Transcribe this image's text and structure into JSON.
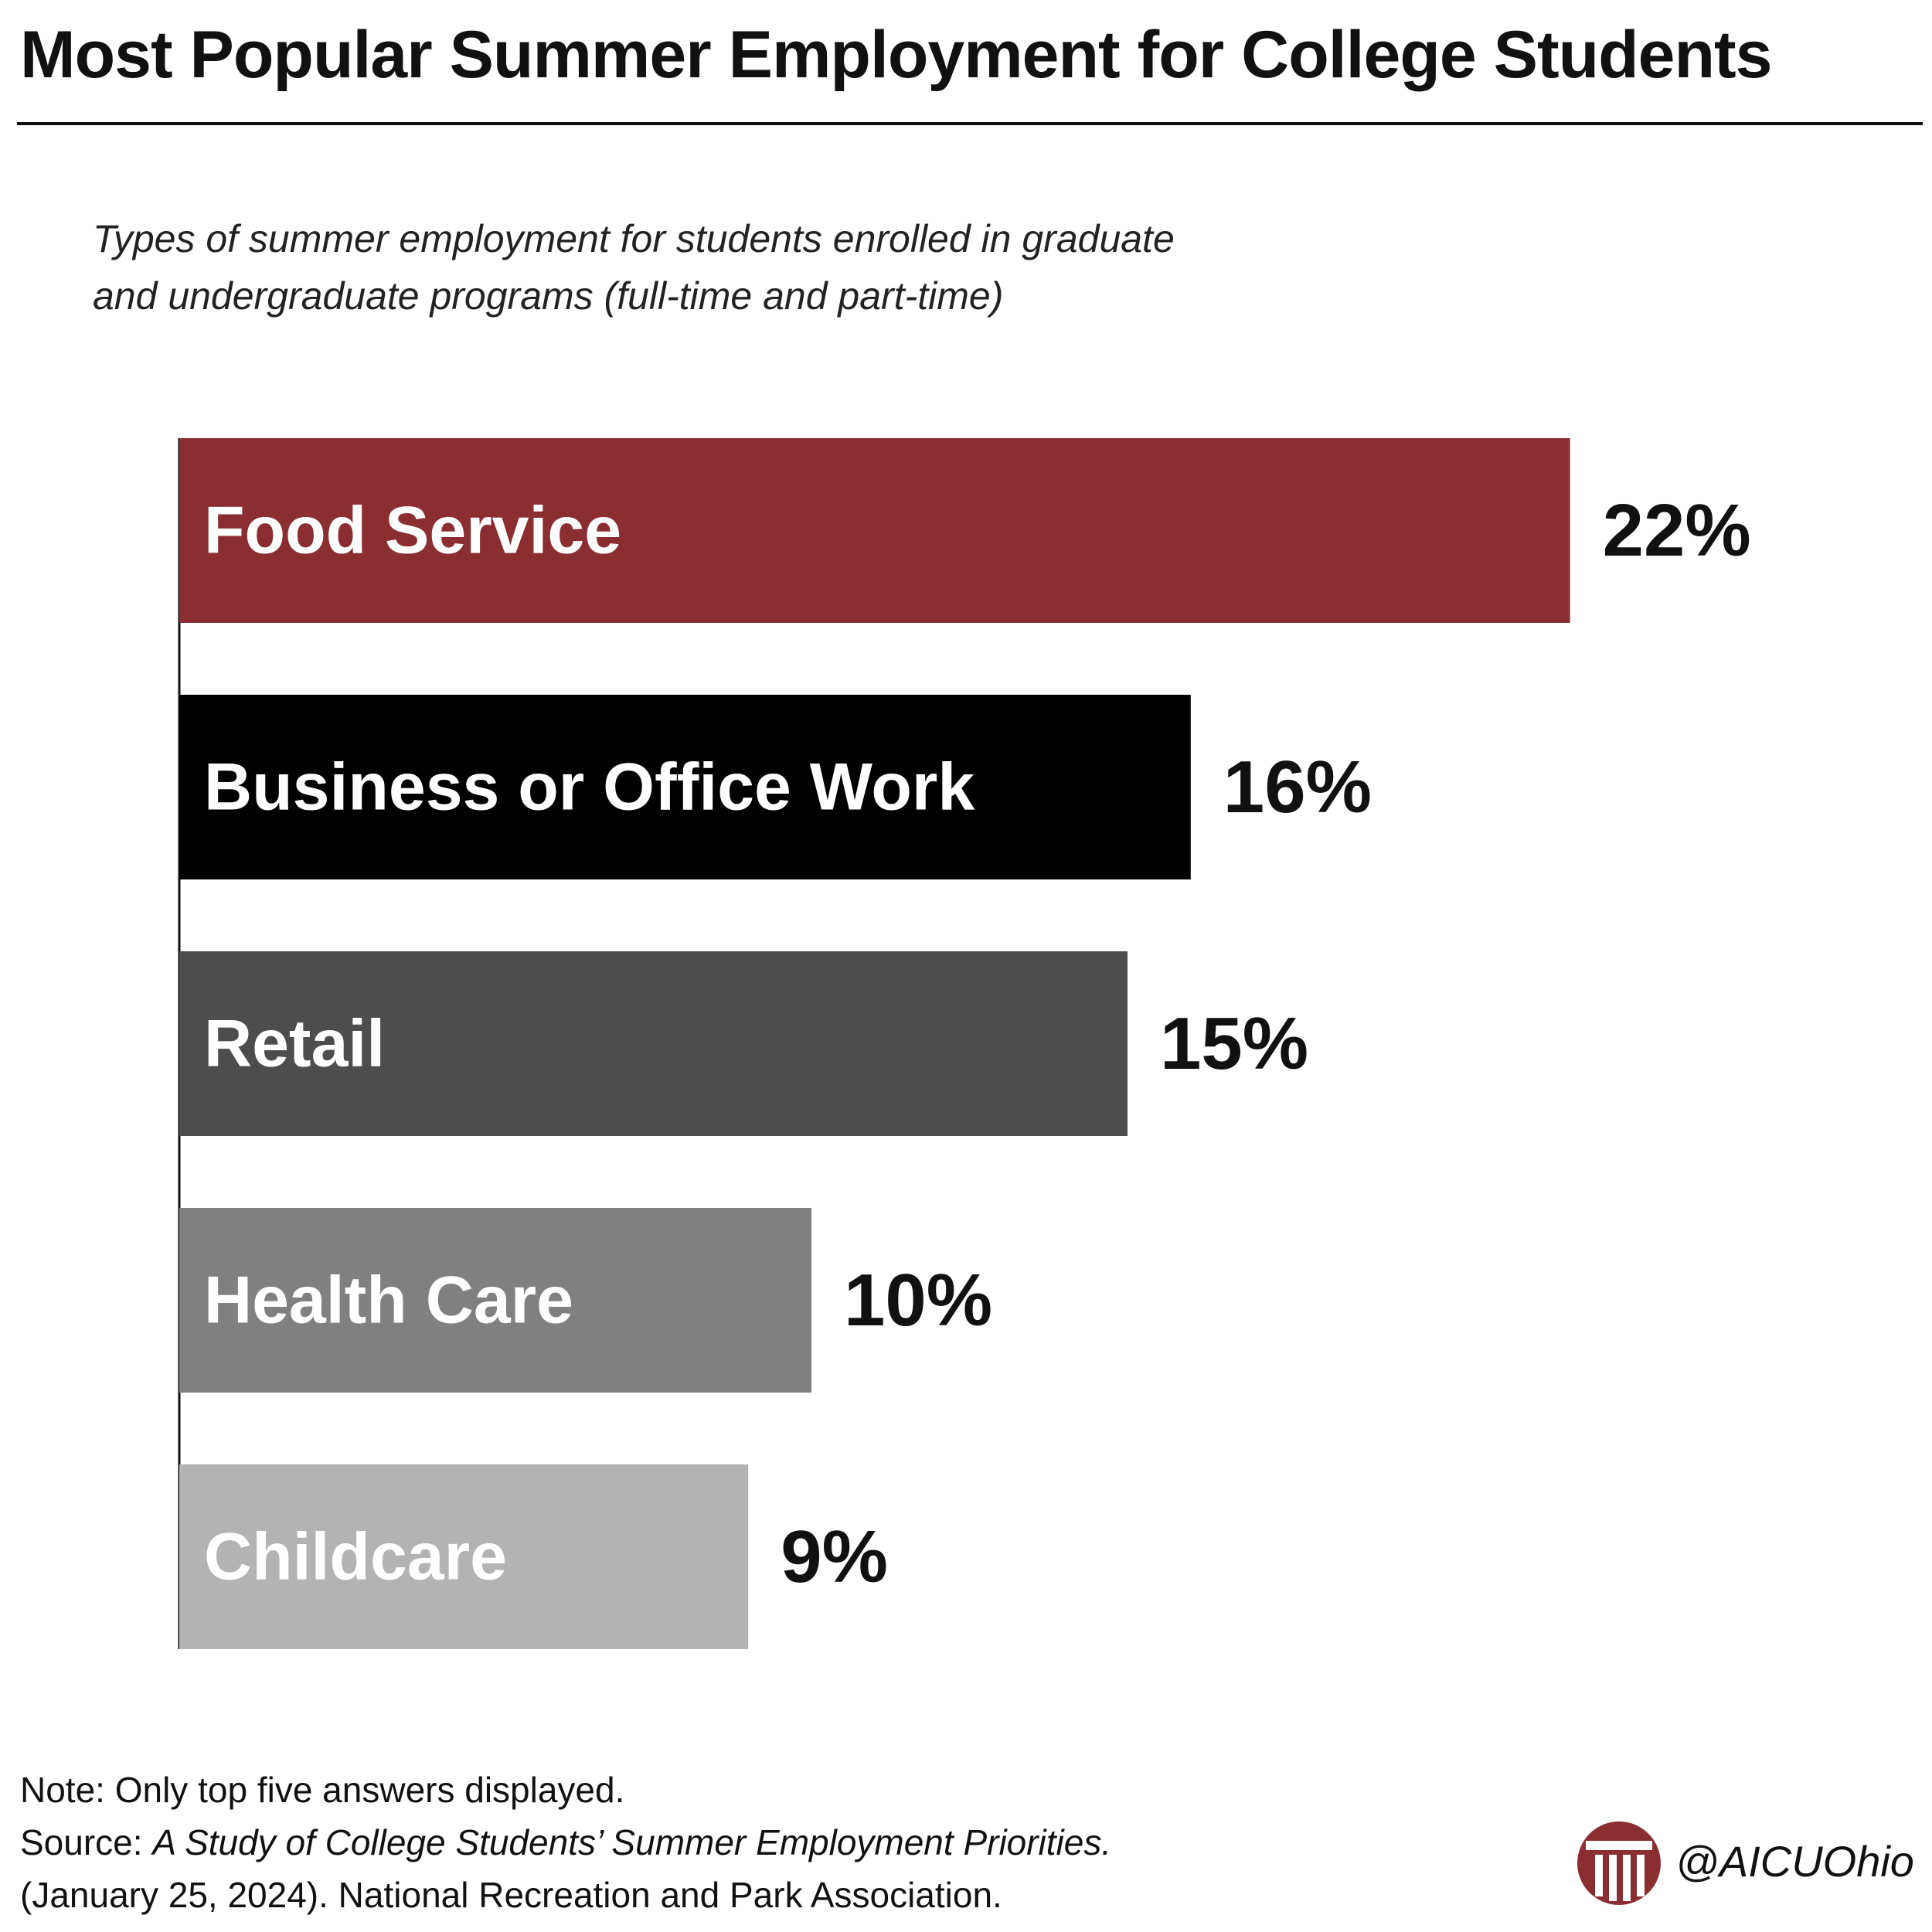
{
  "header": {
    "title": "Most Popular Summer Employment for College Students"
  },
  "chart_data": {
    "type": "bar",
    "orientation": "horizontal",
    "subtitle": "Types of summer employment for students enrolled in graduate and undergraduate programs (full-time and part-time)",
    "subtitle_lines": [
      "Types of summer employment for students enrolled in graduate",
      "and undergraduate programs (full-time and part-time)"
    ],
    "categories": [
      "Food Service",
      "Business or Office Work",
      "Retail",
      "Health Care",
      "Childcare"
    ],
    "values": [
      22,
      16,
      15,
      10,
      9
    ],
    "value_labels": [
      "22%",
      "16%",
      "15%",
      "10%",
      "9%"
    ],
    "bar_colors": [
      "#8b2e32",
      "#000000",
      "#4d4d4d",
      "#808080",
      "#b3b3b3"
    ],
    "unit": "%",
    "grid": false,
    "legend": "none"
  },
  "footer": {
    "note": "Note: Only top five answers displayed.",
    "source_prefix": "Source: ",
    "source_title": "A Study of College Students’ Summer Employment Priorities.",
    "source_rest": "(January 25, 2024). National Recreation and Park Association.",
    "handle": "@AICUOhio",
    "logo_icon": "column-pillar-logo-icon",
    "logo_color": "#8b2e32"
  }
}
